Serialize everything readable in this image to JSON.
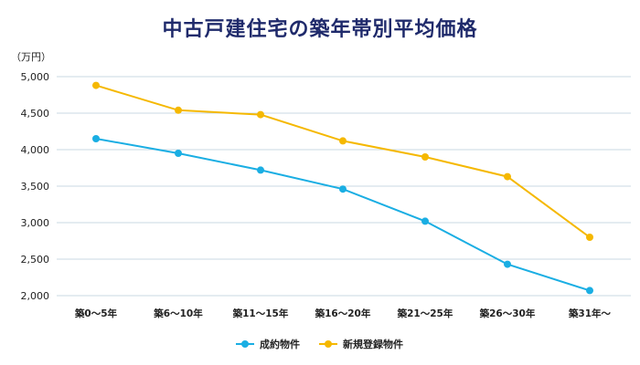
{
  "chart_data": {
    "type": "line",
    "title": "中古戸建住宅の築年帯別平均価格",
    "unit_label": "（万円）",
    "categories": [
      "築0～5年",
      "築6～10年",
      "築11～15年",
      "築16～20年",
      "築21～25年",
      "築26～30年",
      "築31年～"
    ],
    "series": [
      {
        "name": "成約物件",
        "color": "#1aaee3",
        "values": [
          4150,
          3950,
          3720,
          3460,
          3020,
          2430,
          2070
        ]
      },
      {
        "name": "新規登録物件",
        "color": "#f5b800",
        "values": [
          4880,
          4540,
          4480,
          4120,
          3900,
          3630,
          2800
        ]
      }
    ],
    "y_ticks": [
      "5,000",
      "4,500",
      "4,000",
      "3,500",
      "3,000",
      "2,500",
      "2,000"
    ],
    "y_tick_values": [
      5000,
      4500,
      4000,
      3500,
      3000,
      2500,
      2000
    ],
    "ylim": [
      2000,
      5000
    ],
    "grid": true,
    "legend_position": "bottom"
  }
}
